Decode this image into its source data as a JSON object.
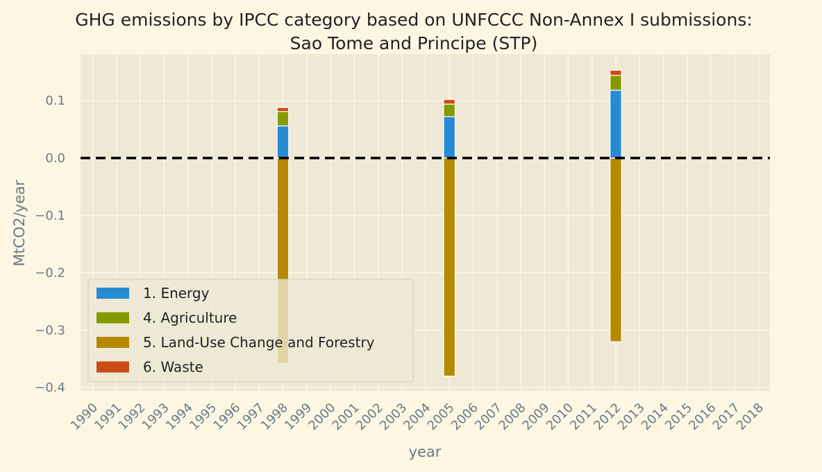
{
  "chart_data": {
    "type": "bar",
    "stacked": true,
    "title_line1": "GHG emissions by IPCC category based on UNFCCC Non-Annex I submissions:",
    "title_line2": "Sao Tome and Principe (STP)",
    "xlabel": "year",
    "ylabel": "MtCO2/year",
    "categories": [
      "1990",
      "1991",
      "1992",
      "1993",
      "1994",
      "1995",
      "1996",
      "1997",
      "1998",
      "1999",
      "2000",
      "2001",
      "2002",
      "2003",
      "2004",
      "2005",
      "2006",
      "2007",
      "2008",
      "2009",
      "2010",
      "2011",
      "2012",
      "2013",
      "2014",
      "2015",
      "2016",
      "2017",
      "2018"
    ],
    "yticks": [
      0.1,
      0.0,
      -0.1,
      -0.2,
      -0.3,
      -0.4
    ],
    "ytick_labels": [
      "0.1",
      "0.0",
      "−0.1",
      "−0.2",
      "−0.3",
      "−0.4"
    ],
    "ylim": [
      -0.41,
      0.18
    ],
    "grid": true,
    "zero_line": {
      "value": 0.0,
      "style": "dashed",
      "color": "#000000"
    },
    "legend_position": "lower-left",
    "series": [
      {
        "name": "1. Energy",
        "color": "#268bd2",
        "values": {
          "1998": 0.056,
          "2005": 0.072,
          "2012": 0.118
        }
      },
      {
        "name": "4. Agriculture",
        "color": "#859900",
        "values": {
          "1998": 0.025,
          "2005": 0.022,
          "2012": 0.026
        }
      },
      {
        "name": "5. Land-Use Change and Forestry",
        "color": "#b58900",
        "values": {
          "1998": -0.358,
          "2005": -0.38,
          "2012": -0.32
        }
      },
      {
        "name": "6. Waste",
        "color": "#cb4b16",
        "values": {
          "1998": 0.007,
          "2005": 0.008,
          "2012": 0.009
        }
      }
    ]
  }
}
